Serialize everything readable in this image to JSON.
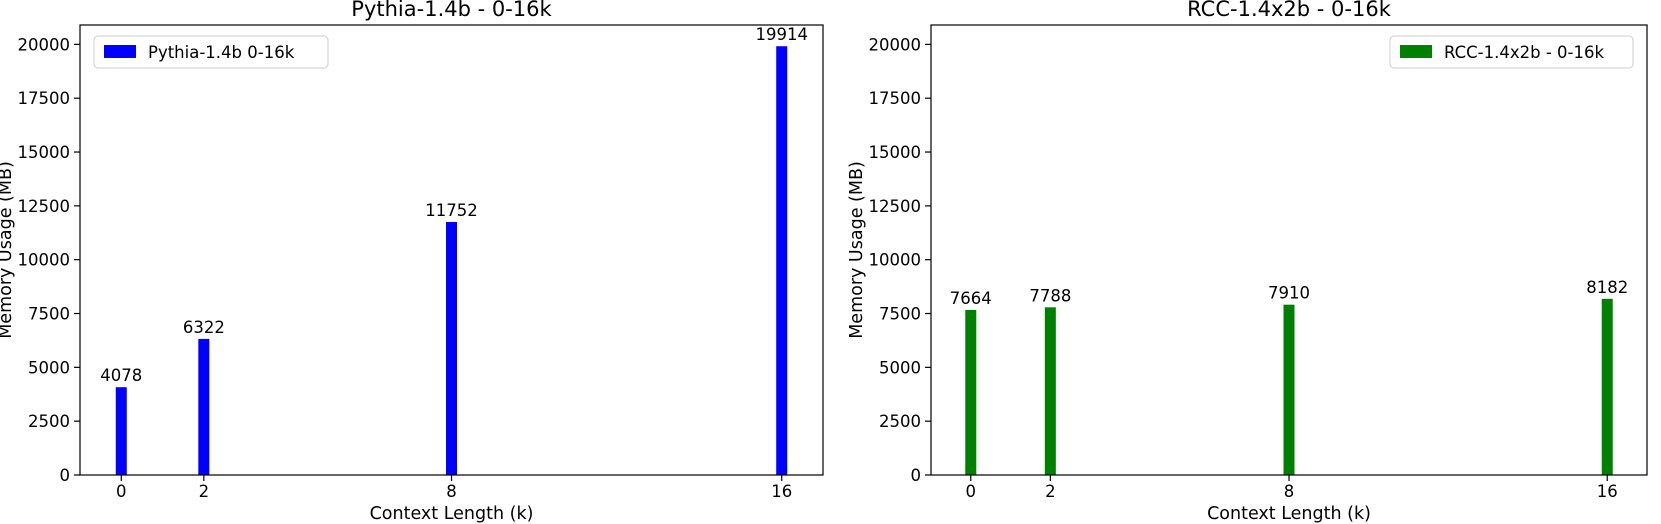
{
  "chart_data": [
    {
      "type": "bar",
      "title": "Pythia-1.4b - 0-16k",
      "xlabel": "Context Length (k)",
      "ylabel": "Memory Usage (MB)",
      "x": [
        0,
        2,
        8,
        16
      ],
      "xticks": [
        "0",
        "2",
        "8",
        "16"
      ],
      "yticks": [
        "0",
        "2500",
        "5000",
        "7500",
        "10000",
        "12500",
        "15000",
        "17500",
        "20000"
      ],
      "xlim": [
        -1.0,
        17.0
      ],
      "ylim": [
        0,
        20900
      ],
      "grid": false,
      "legend_position": "top-left",
      "series": [
        {
          "name": "Pythia-1.4b  0-16k",
          "color": "#0000ff",
          "values": [
            4078,
            6322,
            11752,
            19914
          ],
          "labels": [
            "4078",
            "6322",
            "11752",
            "19914"
          ]
        }
      ]
    },
    {
      "type": "bar",
      "title": "RCC-1.4x2b - 0-16k",
      "xlabel": "Context Length (k)",
      "ylabel": "Memory Usage (MB)",
      "x": [
        0,
        2,
        8,
        16
      ],
      "xticks": [
        "0",
        "2",
        "8",
        "16"
      ],
      "yticks": [
        "0",
        "2500",
        "5000",
        "7500",
        "10000",
        "12500",
        "15000",
        "17500",
        "20000"
      ],
      "xlim": [
        -1.0,
        17.0
      ],
      "ylim": [
        0,
        20900
      ],
      "grid": false,
      "legend_position": "top-right",
      "series": [
        {
          "name": "RCC-1.4x2b - 0-16k",
          "color": "#008000",
          "values": [
            7664,
            7788,
            7910,
            8182
          ],
          "labels": [
            "7664",
            "7788",
            "7910",
            "8182"
          ]
        }
      ]
    }
  ]
}
